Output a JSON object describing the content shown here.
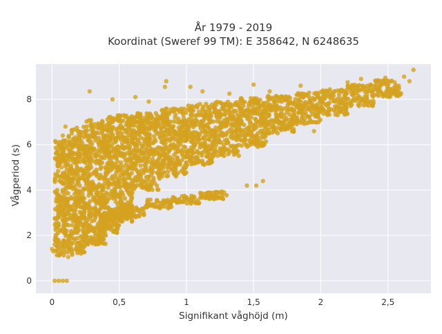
{
  "chart_data": {
    "type": "scatter",
    "title_line1": "År 1979 - 2019",
    "title_line2": "Koordinat (Sweref 99 TM): E 358642, N 6248635",
    "xlabel": "Signifikant våghöjd (m)",
    "ylabel": "Vågperiod (s)",
    "xlim": [
      -0.12,
      2.82
    ],
    "ylim": [
      -0.55,
      9.55
    ],
    "xticks": [
      0,
      0.5,
      1,
      1.5,
      2,
      2.5
    ],
    "xtick_labels": [
      "0",
      "0,5",
      "1",
      "1,5",
      "2",
      "2,5"
    ],
    "yticks": [
      0,
      2,
      4,
      6,
      8
    ],
    "ytick_labels": [
      "0",
      "2",
      "4",
      "6",
      "8"
    ],
    "grid": true,
    "colors": {
      "plot_background": "#e8e8f1",
      "gridline": "#ffffff",
      "marker": "#d4a21e"
    },
    "series": [
      {
        "points": [
          [
            0.02,
            0.0
          ],
          [
            0.05,
            0.0
          ],
          [
            0.08,
            0.0
          ],
          [
            0.11,
            0.0
          ],
          [
            0.28,
            8.35
          ],
          [
            0.85,
            8.8
          ],
          [
            0.84,
            8.55
          ],
          [
            1.03,
            8.55
          ],
          [
            1.12,
            8.35
          ],
          [
            0.62,
            8.1
          ],
          [
            0.45,
            8.0
          ],
          [
            0.72,
            7.9
          ],
          [
            1.32,
            8.25
          ],
          [
            1.5,
            8.65
          ],
          [
            1.62,
            8.35
          ],
          [
            1.85,
            8.6
          ],
          [
            2.05,
            8.35
          ],
          [
            2.2,
            8.75
          ],
          [
            2.3,
            8.9
          ],
          [
            2.4,
            8.6
          ],
          [
            2.48,
            8.95
          ],
          [
            2.55,
            8.75
          ],
          [
            2.62,
            9.0
          ],
          [
            2.69,
            9.3
          ],
          [
            2.66,
            8.8
          ],
          [
            2.58,
            8.6
          ],
          [
            0.0,
            1.4
          ],
          [
            0.01,
            1.3
          ],
          [
            0.02,
            1.6
          ],
          [
            0.05,
            2.8
          ],
          [
            0.05,
            3.2
          ],
          [
            0.04,
            2.4
          ],
          [
            0.08,
            6.4
          ],
          [
            0.1,
            6.8
          ],
          [
            0.08,
            5.3
          ],
          [
            0.07,
            5.0
          ],
          [
            1.45,
            4.2
          ],
          [
            1.52,
            4.2
          ],
          [
            1.57,
            4.4
          ],
          [
            1.28,
            3.9
          ],
          [
            1.18,
            3.8
          ],
          [
            1.52,
            7.45
          ],
          [
            1.4,
            7.6
          ],
          [
            1.92,
            7.8
          ],
          [
            1.95,
            6.6
          ],
          [
            1.82,
            7.0
          ],
          [
            0.25,
            2.2
          ],
          [
            0.4,
            2.0
          ],
          [
            0.12,
            1.05
          ],
          [
            0.15,
            1.15
          ],
          [
            0.2,
            1.4
          ]
        ],
        "bands": [
          {
            "x_from": 0.02,
            "x_to": 0.12,
            "y_from": 1.1,
            "y_to": 6.2
          },
          {
            "x_from": 0.12,
            "x_to": 0.25,
            "y_from": 1.2,
            "y_to": 6.8
          },
          {
            "x_from": 0.25,
            "x_to": 0.4,
            "y_from": 1.6,
            "y_to": 7.1
          },
          {
            "x_from": 0.4,
            "x_to": 0.6,
            "y_from": 2.6,
            "y_to": 7.3
          },
          {
            "x_from": 0.6,
            "x_to": 0.8,
            "y_from": 4.0,
            "y_to": 7.4
          },
          {
            "x_from": 0.8,
            "x_to": 1.0,
            "y_from": 4.6,
            "y_to": 7.6
          },
          {
            "x_from": 1.0,
            "x_to": 1.2,
            "y_from": 5.1,
            "y_to": 7.8
          },
          {
            "x_from": 1.2,
            "x_to": 1.4,
            "y_from": 5.5,
            "y_to": 7.9
          },
          {
            "x_from": 1.4,
            "x_to": 1.6,
            "y_from": 5.9,
            "y_to": 8.05
          },
          {
            "x_from": 1.6,
            "x_to": 1.8,
            "y_from": 6.5,
            "y_to": 8.15
          },
          {
            "x_from": 1.8,
            "x_to": 2.0,
            "y_from": 6.9,
            "y_to": 8.3
          },
          {
            "x_from": 2.0,
            "x_to": 2.2,
            "y_from": 7.3,
            "y_to": 8.45
          },
          {
            "x_from": 2.2,
            "x_to": 2.4,
            "y_from": 7.7,
            "y_to": 8.65
          },
          {
            "x_from": 2.4,
            "x_to": 2.6,
            "y_from": 8.1,
            "y_to": 8.85
          }
        ],
        "lower_arm": [
          {
            "x_from": 0.35,
            "x_to": 0.5,
            "y_from": 2.1,
            "y_to": 3.0
          },
          {
            "x_from": 0.5,
            "x_to": 0.7,
            "y_from": 2.8,
            "y_to": 3.3
          },
          {
            "x_from": 0.7,
            "x_to": 0.9,
            "y_from": 3.2,
            "y_to": 3.6
          },
          {
            "x_from": 0.9,
            "x_to": 1.1,
            "y_from": 3.4,
            "y_to": 3.75
          },
          {
            "x_from": 1.1,
            "x_to": 1.3,
            "y_from": 3.6,
            "y_to": 3.95
          }
        ]
      }
    ]
  }
}
